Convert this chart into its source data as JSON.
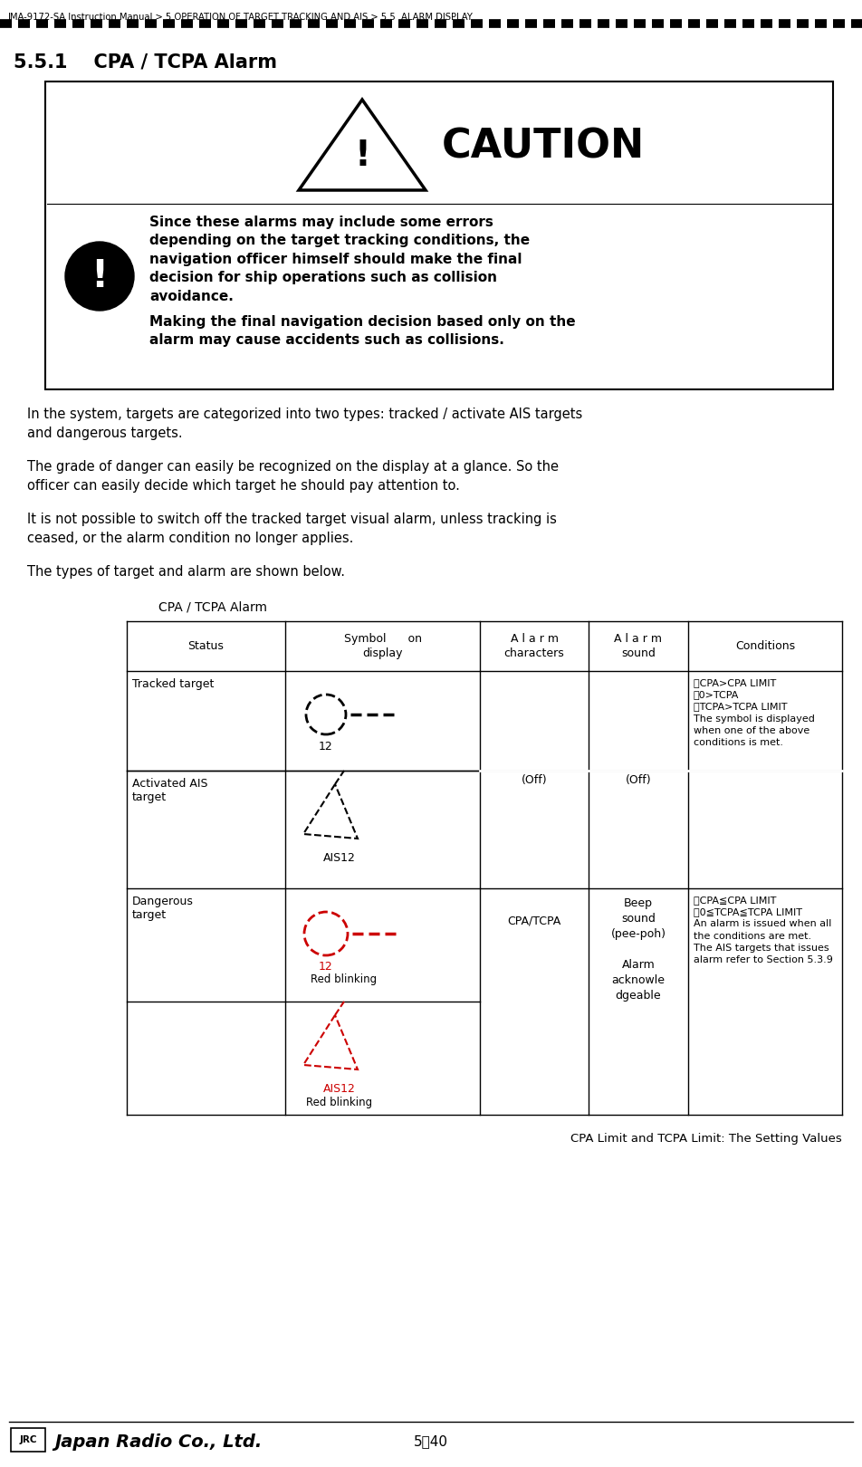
{
  "breadcrumb": "JMA-9172-SA Instruction Manual > 5.OPERATION OF TARGET TRACKING AND AIS > 5.5  ALARM DISPLAY",
  "section_title": "5.5.1    CPA / TCPA Alarm",
  "caution_title": "CAUTION",
  "caution_text1": "Since these alarms may include some errors\ndepending on the target tracking conditions, the\nnavigation officer himself should make the final\ndecision for ship operations such as collision\navoidance.",
  "caution_text2": "Making the final navigation decision based only on the\nalarm may cause accidents such as collisions.",
  "body_text1": "In the system, targets are categorized into two types: tracked / activate AIS targets\nand dangerous targets.",
  "body_text2": "The grade of danger can easily be recognized on the display at a glance. So the\nofficer can easily decide which target he should pay attention to.",
  "body_text3": "It is not possible to switch off the tracked target visual alarm, unless tracking is\nceased, or the alarm condition no longer applies.",
  "body_text4": "The types of target and alarm are shown below.",
  "table_caption": "CPA / TCPA Alarm",
  "table_footer": "CPA Limit and TCPA Limit: The Setting Values",
  "col_headers": [
    "Status",
    "Symbol      on\ndisplay",
    "A l a r m\ncharacters",
    "A l a r m\nsound",
    "Conditions"
  ],
  "row1_status": "Tracked target",
  "row1_chars": "(Off)",
  "row1_sound": "(Off)",
  "row1_cond": "・CPA>CPA LIMIT\n・0>TCPA\n・TCPA>TCPA LIMIT\nThe symbol is displayed\nwhen one of the above\nconditions is met.",
  "row2_status": "Activated AIS\ntarget",
  "row3_status": "Dangerous\ntarget",
  "row3_chars": "CPA/TCPA",
  "row3_sound": "Beep\nsound\n(pee-poh)\n\nAlarm\nacknowle\ndgeable",
  "row3_cond": "・CPA≦CPA LIMIT\n・0≦TCPA≦TCPA LIMIT\nAn alarm is issued when all\nthe conditions are met.\nThe AIS targets that issues\nalarm refer to Section 5.3.9",
  "footer_logo_text": "Japan Radio Co., Ltd.",
  "footer_page": "5－40",
  "bg_color": "#ffffff",
  "border_color": "#000000",
  "red_color": "#cc0000",
  "black_color": "#000000"
}
